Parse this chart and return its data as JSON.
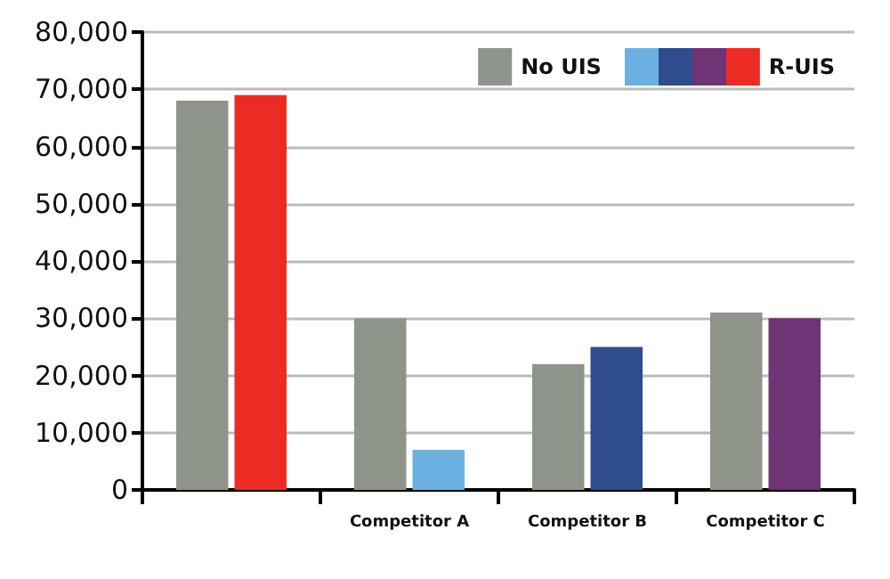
{
  "chart_data": {
    "type": "bar",
    "categories": [
      null,
      "Competitor A",
      "Competitor B",
      "Competitor C"
    ],
    "series": [
      {
        "name": "No UIS",
        "color": "#8e948a",
        "values": [
          68000,
          30000,
          22000,
          31000
        ]
      },
      {
        "name": "R-UIS",
        "color": "#ec2b24",
        "colors": [
          "#ec2b24",
          "#6cb0e2",
          "#2f4c8c",
          "#6e3473"
        ],
        "values": [
          69000,
          7000,
          25000,
          30000
        ]
      }
    ],
    "ylim": [
      0,
      80000
    ],
    "yticks": [
      0,
      {
        "value": 10000,
        "label": "10,000"
      },
      {
        "value": 20000,
        "label": "20,000"
      },
      {
        "value": 30000,
        "label": "30,000"
      },
      {
        "value": 40000,
        "label": "40,000"
      },
      {
        "value": 50000,
        "label": "50,000"
      },
      {
        "value": 60000,
        "label": "60,000"
      },
      {
        "value": 70000,
        "label": "70,000"
      },
      {
        "value": 80000,
        "label": "80,000"
      }
    ],
    "grid": "y",
    "legend": "top right"
  }
}
